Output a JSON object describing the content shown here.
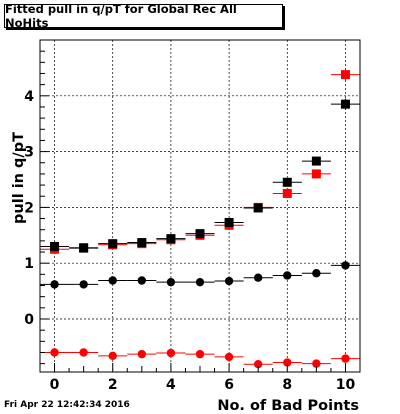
{
  "chart_data": {
    "type": "scatter",
    "title": "Fitted pull in q/pT for Global Rec All NoHits",
    "xlabel": "No. of Bad Points",
    "ylabel": "pull in q/pT",
    "xlim": [
      -0.5,
      10.5
    ],
    "ylim": [
      -0.95,
      5.0
    ],
    "x_ticks": [
      0,
      2,
      4,
      6,
      8,
      10
    ],
    "y_ticks": [
      0,
      1,
      2,
      3,
      4
    ],
    "grid": true,
    "x_bin_half_width": 0.5,
    "series": [
      {
        "marker": "square",
        "color": "#ff0000",
        "x": [
          0,
          1,
          2,
          3,
          4,
          5,
          6,
          7,
          8,
          9,
          10
        ],
        "y": [
          1.25,
          1.28,
          1.33,
          1.35,
          1.42,
          1.5,
          1.68,
          2.0,
          2.25,
          2.6,
          4.38
        ],
        "err": [
          0.04,
          0.04,
          0.04,
          0.04,
          0.04,
          0.04,
          0.05,
          0.05,
          0.06,
          0.08,
          0.1
        ]
      },
      {
        "marker": "square",
        "color": "#000000",
        "x": [
          0,
          1,
          2,
          3,
          4,
          5,
          6,
          7,
          8,
          9,
          10
        ],
        "y": [
          1.3,
          1.27,
          1.35,
          1.37,
          1.44,
          1.53,
          1.73,
          1.99,
          2.45,
          2.83,
          3.85
        ],
        "err": [
          0.04,
          0.04,
          0.04,
          0.04,
          0.04,
          0.04,
          0.05,
          0.05,
          0.06,
          0.08,
          0.1
        ]
      },
      {
        "marker": "circle",
        "color": "#000000",
        "x": [
          0,
          1,
          2,
          3,
          4,
          5,
          6,
          7,
          8,
          9,
          10
        ],
        "y": [
          0.62,
          0.62,
          0.69,
          0.69,
          0.66,
          0.66,
          0.68,
          0.74,
          0.78,
          0.82,
          0.96
        ],
        "err": [
          0.02,
          0.02,
          0.02,
          0.02,
          0.02,
          0.02,
          0.02,
          0.02,
          0.03,
          0.03,
          0.04
        ]
      },
      {
        "marker": "circle",
        "color": "#ff0000",
        "x": [
          0,
          1,
          2,
          3,
          4,
          5,
          6,
          7,
          8,
          9,
          10
        ],
        "y": [
          -0.6,
          -0.6,
          -0.66,
          -0.63,
          -0.61,
          -0.63,
          -0.68,
          -0.81,
          -0.78,
          -0.8,
          -0.71
        ],
        "err": [
          0.02,
          0.02,
          0.02,
          0.02,
          0.02,
          0.02,
          0.02,
          0.03,
          0.03,
          0.03,
          0.03
        ]
      }
    ]
  },
  "footer": {
    "timestamp": "Fri Apr 22 12:42:34 2016"
  }
}
